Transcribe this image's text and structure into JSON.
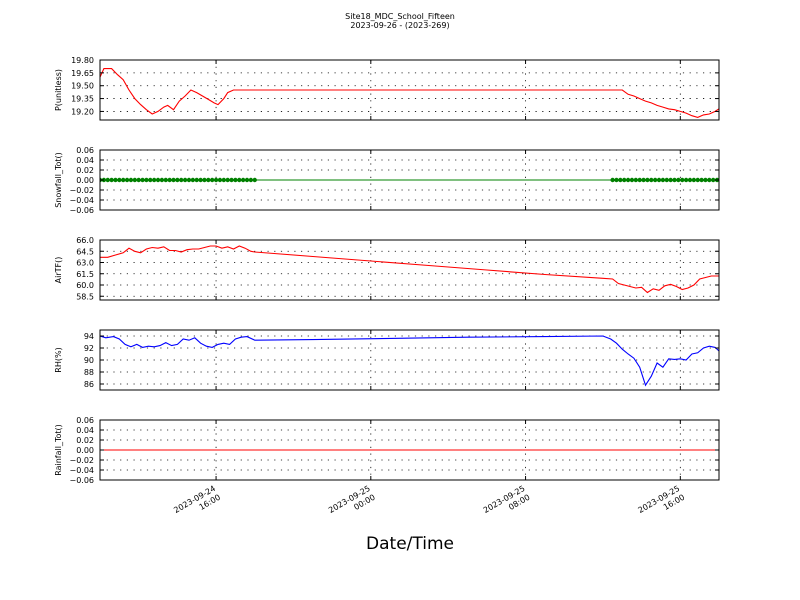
{
  "figure": {
    "title": "Site18_MDC_School_Fifteen",
    "subtitle": "2023-09-26 - (2023-269)",
    "xlabel": "Date/Time"
  },
  "chart_data": [
    {
      "type": "line",
      "ylabel": "P(unitless)",
      "color": "#ff0000",
      "ylim": [
        19.1,
        19.8
      ],
      "yticks": [
        "19.80",
        "19.65",
        "19.50",
        "19.35",
        "19.20"
      ],
      "ytick_values": [
        19.8,
        19.65,
        19.5,
        19.35,
        19.2
      ],
      "grid": true,
      "xlim": [
        -3,
        29
      ],
      "xticks": [
        {
          "x": 3,
          "line1": "2023-09-24",
          "line2": "16:00"
        },
        {
          "x": 11,
          "line1": "2023-09-25",
          "line2": "00:00"
        },
        {
          "x": 19,
          "line1": "2023-09-25",
          "line2": "08:00"
        },
        {
          "x": 27,
          "line1": "2023-09-25",
          "line2": "16:00"
        }
      ],
      "x": [
        -3.0,
        -2.8,
        -2.4,
        -2.1,
        -1.8,
        -1.5,
        -1.2,
        -0.9,
        -0.6,
        -0.3,
        0.0,
        0.3,
        0.5,
        0.8,
        1.1,
        1.4,
        1.7,
        2.0,
        2.3,
        2.6,
        2.9,
        3.1,
        3.4,
        3.6,
        3.9,
        4.2,
        4.6,
        5.0,
        24.0,
        24.3,
        24.6,
        24.9,
        25.2,
        25.5,
        25.8,
        26.1,
        26.4,
        26.7,
        27.0,
        27.3,
        27.6,
        27.9,
        28.2,
        28.5,
        28.8,
        29.0
      ],
      "values": [
        19.6,
        19.7,
        19.7,
        19.63,
        19.57,
        19.45,
        19.35,
        19.28,
        19.22,
        19.17,
        19.2,
        19.25,
        19.27,
        19.22,
        19.32,
        19.38,
        19.45,
        19.42,
        19.38,
        19.34,
        19.3,
        19.28,
        19.35,
        19.42,
        19.45,
        19.45,
        19.45,
        19.45,
        19.45,
        19.4,
        19.38,
        19.35,
        19.32,
        19.3,
        19.27,
        19.25,
        19.23,
        19.22,
        19.2,
        19.18,
        19.15,
        19.13,
        19.16,
        19.17,
        19.2,
        19.23
      ]
    },
    {
      "type": "line",
      "ylabel": "Snowfall_Tot()",
      "color": "#008000",
      "marker": "dot",
      "ylim": [
        -0.06,
        0.06
      ],
      "yticks": [
        "0.06",
        "0.04",
        "0.02",
        "0.00",
        "−0.02",
        "−0.04",
        "−0.06"
      ],
      "ytick_values": [
        0.06,
        0.04,
        0.02,
        0.0,
        -0.02,
        -0.04,
        -0.06
      ],
      "grid": true,
      "xlim": [
        -3,
        29
      ],
      "x": [
        -3.0,
        -2.8,
        -2.6,
        -2.4,
        -2.2,
        -2.0,
        -1.8,
        -1.6,
        -1.4,
        -1.2,
        -1.0,
        -0.8,
        -0.6,
        -0.4,
        -0.2,
        0.0,
        0.2,
        0.4,
        0.6,
        0.8,
        1.0,
        1.2,
        1.4,
        1.6,
        1.8,
        2.0,
        2.2,
        2.4,
        2.6,
        2.8,
        3.0,
        3.2,
        3.4,
        3.6,
        3.8,
        4.0,
        4.2,
        4.4,
        4.6,
        4.8,
        5.0,
        23.5,
        23.7,
        23.9,
        24.1,
        24.3,
        24.5,
        24.7,
        24.9,
        25.1,
        25.3,
        25.5,
        25.7,
        25.9,
        26.1,
        26.3,
        26.5,
        26.7,
        26.9,
        27.1,
        27.3,
        27.5,
        27.7,
        27.9,
        28.1,
        28.3,
        28.5,
        28.7,
        28.9
      ],
      "values": [
        0,
        0,
        0,
        0,
        0,
        0,
        0,
        0,
        0,
        0,
        0,
        0,
        0,
        0,
        0,
        0,
        0,
        0,
        0,
        0,
        0,
        0,
        0,
        0,
        0,
        0,
        0,
        0,
        0,
        0,
        0,
        0,
        0,
        0,
        0,
        0,
        0,
        0,
        0,
        0,
        0,
        0,
        0,
        0,
        0,
        0,
        0,
        0,
        0,
        0,
        0,
        0,
        0,
        0,
        0,
        0,
        0,
        0,
        0,
        0,
        0,
        0,
        0,
        0,
        0,
        0,
        0,
        0,
        0
      ],
      "line_x": [
        -3.0,
        29.0
      ],
      "line_values": [
        0,
        0
      ]
    },
    {
      "type": "line",
      "ylabel": "AirTF()",
      "color": "#ff0000",
      "ylim": [
        58.0,
        66.0
      ],
      "yticks": [
        "66.0",
        "64.5",
        "63.0",
        "61.5",
        "60.0",
        "58.5"
      ],
      "ytick_values": [
        66.0,
        64.5,
        63.0,
        61.5,
        60.0,
        58.5
      ],
      "grid": true,
      "xlim": [
        -3,
        29
      ],
      "x": [
        -3.0,
        -2.6,
        -2.2,
        -1.8,
        -1.5,
        -1.2,
        -0.9,
        -0.6,
        -0.3,
        0.0,
        0.3,
        0.6,
        0.9,
        1.2,
        1.5,
        1.8,
        2.1,
        2.4,
        2.7,
        3.0,
        3.3,
        3.6,
        3.9,
        4.2,
        4.5,
        4.8,
        5.0,
        6.0,
        8.0,
        11.0,
        14.0,
        17.0,
        20.0,
        23.0,
        23.5,
        23.8,
        24.1,
        24.4,
        24.7,
        25.0,
        25.3,
        25.6,
        25.9,
        26.2,
        26.5,
        26.8,
        27.1,
        27.4,
        27.7,
        28.0,
        28.3,
        28.6,
        29.0
      ],
      "values": [
        63.7,
        63.7,
        64.0,
        64.3,
        64.9,
        64.5,
        64.3,
        64.8,
        65.0,
        64.9,
        65.1,
        64.6,
        64.6,
        64.4,
        64.7,
        64.8,
        64.8,
        65.0,
        65.2,
        65.2,
        64.9,
        65.1,
        64.8,
        65.2,
        64.9,
        64.5,
        64.4,
        64.2,
        63.8,
        63.2,
        62.6,
        62.0,
        61.4,
        60.9,
        60.8,
        60.2,
        60.0,
        59.8,
        59.6,
        59.7,
        59.0,
        59.5,
        59.3,
        59.9,
        60.1,
        59.8,
        59.4,
        59.6,
        60.0,
        60.8,
        61.0,
        61.2,
        61.2
      ]
    },
    {
      "type": "line",
      "ylabel": "RH(%)",
      "color": "#0000ff",
      "ylim": [
        85,
        95
      ],
      "yticks": [
        "94",
        "92",
        "90",
        "88",
        "86"
      ],
      "ytick_values": [
        94,
        92,
        90,
        88,
        86
      ],
      "grid": true,
      "xlim": [
        -3,
        29
      ],
      "x": [
        -3.0,
        -2.7,
        -2.3,
        -2.0,
        -1.7,
        -1.4,
        -1.1,
        -0.8,
        -0.5,
        -0.2,
        0.1,
        0.4,
        0.7,
        1.0,
        1.3,
        1.6,
        1.9,
        2.2,
        2.5,
        2.8,
        3.1,
        3.4,
        3.7,
        4.0,
        4.3,
        4.6,
        5.0,
        8.0,
        12.0,
        16.0,
        20.0,
        23.0,
        23.4,
        23.7,
        24.0,
        24.3,
        24.6,
        24.9,
        25.2,
        25.5,
        25.8,
        26.1,
        26.4,
        26.7,
        27.0,
        27.3,
        27.6,
        27.9,
        28.2,
        28.5,
        28.8,
        29.0
      ],
      "values": [
        94.0,
        93.7,
        93.9,
        93.5,
        92.6,
        92.2,
        92.6,
        92.1,
        92.3,
        92.2,
        92.4,
        92.9,
        92.4,
        92.6,
        93.5,
        93.3,
        93.7,
        92.8,
        92.3,
        92.1,
        92.6,
        92.8,
        92.6,
        93.5,
        93.8,
        93.9,
        93.3,
        93.4,
        93.6,
        93.8,
        93.9,
        94.0,
        93.5,
        92.8,
        91.8,
        91.0,
        90.3,
        88.8,
        85.8,
        87.3,
        89.5,
        88.8,
        90.2,
        90.1,
        90.2,
        90.0,
        91.0,
        91.2,
        92.0,
        92.3,
        92.1,
        91.5
      ]
    },
    {
      "type": "line",
      "ylabel": "Rainfall_Tot()",
      "color": "#ff0000",
      "ylim": [
        -0.06,
        0.06
      ],
      "yticks": [
        "0.06",
        "0.04",
        "0.02",
        "0.00",
        "−0.02",
        "−0.04",
        "−0.06"
      ],
      "ytick_values": [
        0.06,
        0.04,
        0.02,
        0.0,
        -0.02,
        -0.04,
        -0.06
      ],
      "grid": true,
      "xlim": [
        -3,
        29
      ],
      "x": [
        -3.0,
        29.0
      ],
      "values": [
        0,
        0
      ]
    }
  ]
}
